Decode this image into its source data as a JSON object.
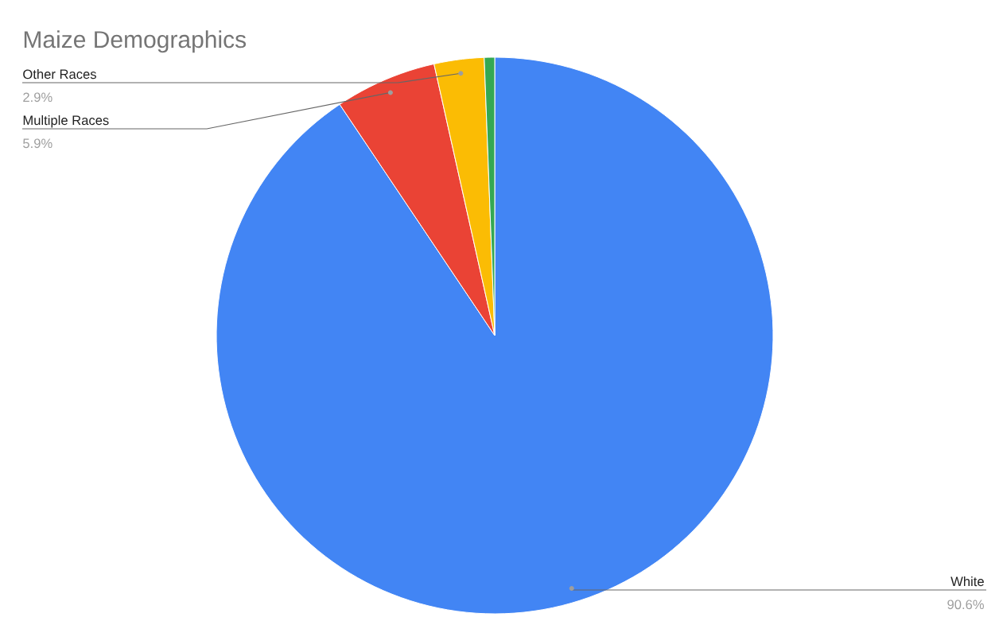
{
  "chart_data": {
    "type": "pie",
    "title": "Maize Demographics",
    "categories": [
      "White",
      "Multiple Races",
      "Other Races",
      null
    ],
    "values": [
      90.6,
      5.9,
      2.9,
      0.6
    ],
    "colors": [
      "#4285f4",
      "#ea4335",
      "#fbbc04",
      "#34a853"
    ],
    "value_labels": [
      "90.6%",
      "5.9%",
      "2.9%",
      null
    ]
  }
}
